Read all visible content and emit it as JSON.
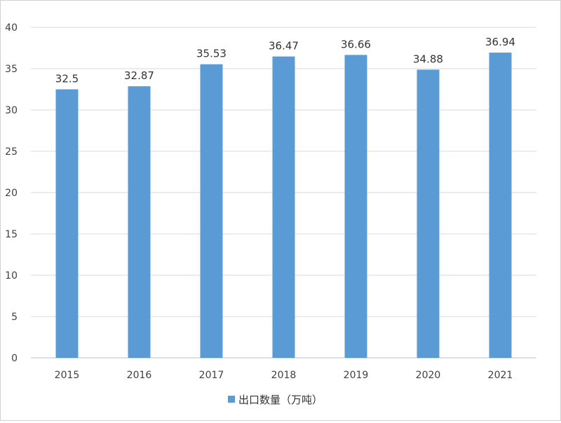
{
  "chart_data": {
    "type": "bar",
    "title": "",
    "xlabel": "",
    "ylabel": "",
    "categories": [
      "2015",
      "2016",
      "2017",
      "2018",
      "2019",
      "2020",
      "2021"
    ],
    "series": [
      {
        "name": "出口数量（万吨）",
        "values": [
          32.5,
          32.87,
          35.53,
          36.47,
          36.66,
          34.88,
          36.94
        ],
        "data_labels": [
          "32.5",
          "32.87",
          "35.53",
          "36.47",
          "36.66",
          "34.88",
          "36.94"
        ],
        "color": "#5b9bd5"
      }
    ],
    "ylim": [
      0,
      40
    ],
    "yticks": [
      0,
      5,
      10,
      15,
      20,
      25,
      30,
      35,
      40
    ],
    "ytick_labels": [
      "0",
      "5",
      "10",
      "15",
      "20",
      "25",
      "30",
      "35",
      "40"
    ],
    "grid": true,
    "gridline_color": "#d9d9d9",
    "legend_position": "bottom"
  }
}
